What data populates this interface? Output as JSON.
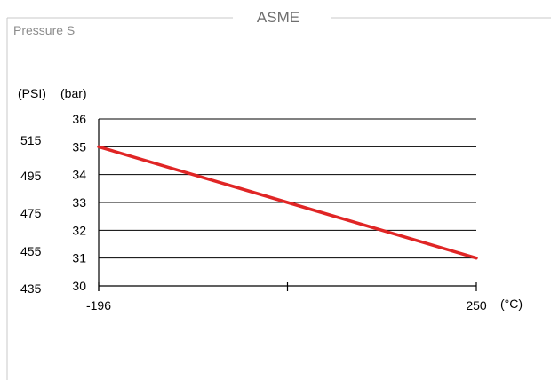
{
  "chart_data": {
    "type": "line",
    "title": "ASME",
    "subtitle": "Pressure S",
    "x_unit": "(°C)",
    "y_units": [
      "(PSI)",
      "(bar)"
    ],
    "x_ticks": [
      -196,
      250
    ],
    "xlim": [
      -196,
      250
    ],
    "ylim_bar": [
      30,
      36
    ],
    "bar_ticks": [
      30,
      31,
      32,
      33,
      34,
      35,
      36
    ],
    "psi_ticks": [
      435,
      455,
      475,
      495,
      515
    ],
    "grid": true,
    "series": [
      {
        "color": "#e02525",
        "x": [
          -196,
          250
        ],
        "y": [
          35,
          31
        ]
      }
    ]
  }
}
